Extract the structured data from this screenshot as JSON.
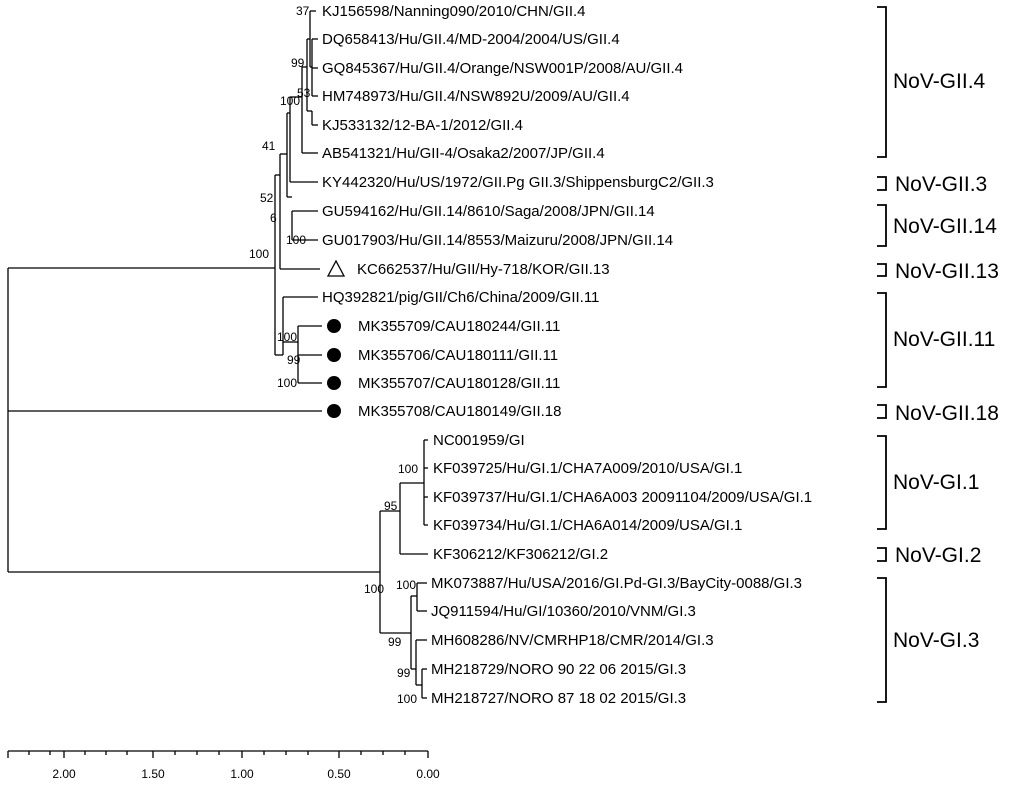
{
  "leaves": [
    {
      "label": "KJ156598/Nanning090/2010/CHN/GII.4",
      "marker": "none"
    },
    {
      "label": "DQ658413/Hu/GII.4/MD-2004/2004/US/GII.4",
      "marker": "none"
    },
    {
      "label": "GQ845367/Hu/GII.4/Orange/NSW001P/2008/AU/GII.4",
      "marker": "none"
    },
    {
      "label": "HM748973/Hu/GII.4/NSW892U/2009/AU/GII.4",
      "marker": "none"
    },
    {
      "label": "KJ533132/12-BA-1/2012/GII.4",
      "marker": "none"
    },
    {
      "label": "AB541321/Hu/GII-4/Osaka2/2007/JP/GII.4",
      "marker": "none"
    },
    {
      "label": "KY442320/Hu/US/1972/GII.Pg GII.3/ShippensburgC2/GII.3",
      "marker": "none"
    },
    {
      "label": "GU594162/Hu/GII.14/8610/Saga/2008/JPN/GII.14",
      "marker": "none"
    },
    {
      "label": "GU017903/Hu/GII.14/8553/Maizuru/2008/JPN/GII.14",
      "marker": "none"
    },
    {
      "label": "KC662537/Hu/GII/Hy-718/KOR/GII.13",
      "marker": "triangle"
    },
    {
      "label": "HQ392821/pig/GII/Ch6/China/2009/GII.11",
      "marker": "none"
    },
    {
      "label": "MK355709/CAU180244/GII.11",
      "marker": "circle"
    },
    {
      "label": "MK355706/CAU180111/GII.11",
      "marker": "circle"
    },
    {
      "label": "MK355707/CAU180128/GII.11",
      "marker": "circle"
    },
    {
      "label": "MK355708/CAU180149/GII.18",
      "marker": "circle"
    },
    {
      "label": "NC001959/GI",
      "marker": "none"
    },
    {
      "label": "KF039725/Hu/GI.1/CHA7A009/2010/USA/GI.1",
      "marker": "none"
    },
    {
      "label": "KF039737/Hu/GI.1/CHA6A003 20091104/2009/USA/GI.1",
      "marker": "none"
    },
    {
      "label": "KF039734/Hu/GI.1/CHA6A014/2009/USA/GI.1",
      "marker": "none"
    },
    {
      "label": "KF306212/KF306212/GI.2",
      "marker": "none"
    },
    {
      "label": "MK073887/Hu/USA/2016/GI.Pd-GI.3/BayCity-0088/GI.3",
      "marker": "none"
    },
    {
      "label": "JQ911594/Hu/GI/10360/2010/VNM/GI.3",
      "marker": "none"
    },
    {
      "label": "MH608286/NV/CMRHP18/CMR/2014/GI.3",
      "marker": "none"
    },
    {
      "label": "MH218729/NORO 90 22 06 2015/GI.3",
      "marker": "none"
    },
    {
      "label": "MH218727/NORO 87 18 02 2015/GI.3",
      "marker": "none"
    }
  ],
  "bootstrap": [
    "37",
    "99",
    "53",
    "100",
    "41",
    "52",
    "6",
    "100",
    "100",
    "100",
    "99",
    "100",
    "100",
    "95",
    "100",
    "100",
    "99",
    "99",
    "100"
  ],
  "clades": [
    "NoV-GII.4",
    "NoV-GII.3",
    "NoV-GII.14",
    "NoV-GII.13",
    "NoV-GII.11",
    "NoV-GII.18",
    "NoV-GI.1",
    "NoV-GI.2",
    "NoV-GI.3"
  ],
  "scale": {
    "ticks": [
      "2.00",
      "1.50",
      "1.00",
      "0.50",
      "0.00"
    ]
  }
}
